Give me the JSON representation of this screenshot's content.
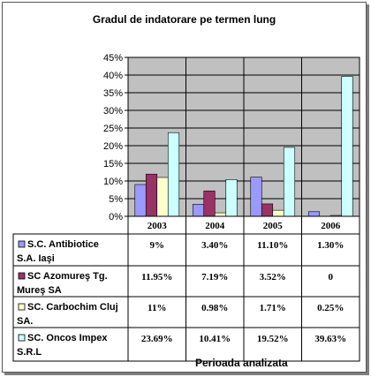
{
  "chart_data": {
    "type": "bar",
    "title": "Gradul de indatorare pe termen lung",
    "xlabel": "Perioada analizata",
    "ylabel": "",
    "ylim": [
      0,
      45
    ],
    "yticks": [
      "0%",
      "5%",
      "10%",
      "15%",
      "20%",
      "25%",
      "30%",
      "35%",
      "40%",
      "45%"
    ],
    "grid": true,
    "legend": "data-table",
    "categories": [
      "2003",
      "2004",
      "2005",
      "2006"
    ],
    "series": [
      {
        "name": "S.C. Antibiotice S.A. Iaşi",
        "color": "#9999ff",
        "values": [
          9,
          3.4,
          11.1,
          1.3
        ],
        "labels": [
          "9%",
          "3.40%",
          "11.10%",
          "1.30%"
        ]
      },
      {
        "name": "SC Azomureş Tg. Mureş SA",
        "color": "#993366",
        "values": [
          11.95,
          7.19,
          3.52,
          0
        ],
        "labels": [
          "11.95%",
          "7.19%",
          "3.52%",
          "0"
        ]
      },
      {
        "name": "SC. Carbochim Cluj SA.",
        "color": "#ffffcc",
        "values": [
          11,
          0.98,
          1.71,
          0.25
        ],
        "labels": [
          "11%",
          "0.98%",
          "1.71%",
          "0.25%"
        ]
      },
      {
        "name": "SC. Oncos Impex S.R.L",
        "color": "#ccffff",
        "values": [
          23.69,
          10.41,
          19.52,
          39.63
        ],
        "labels": [
          "23.69%",
          "10.41%",
          "19.52%",
          "39.63%"
        ]
      }
    ]
  },
  "colors": {
    "plot_area": "#c0c0c0",
    "grid": "#000000"
  }
}
